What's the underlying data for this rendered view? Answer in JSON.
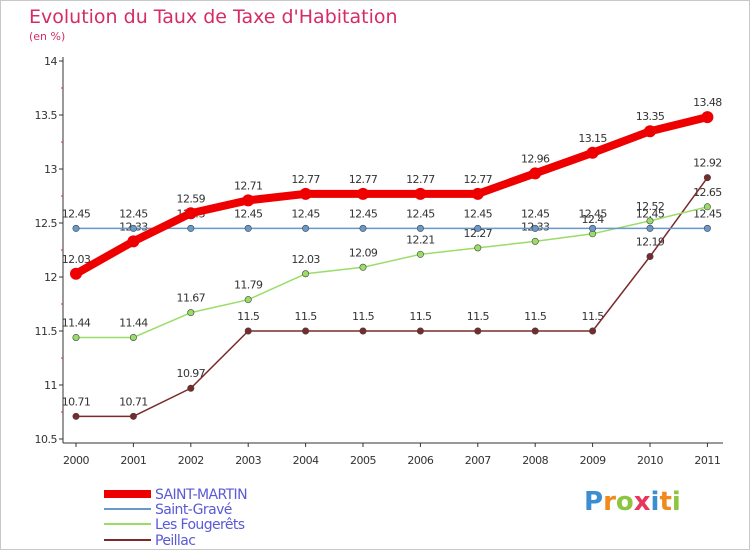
{
  "chart_data": {
    "type": "line",
    "title": "Evolution du Taux de Taxe d'Habitation",
    "unit_label": "(en %)",
    "x": [
      "2000",
      "2001",
      "2002",
      "2003",
      "2004",
      "2005",
      "2006",
      "2007",
      "2008",
      "2009",
      "2010",
      "2011"
    ],
    "ylim": [
      10.5,
      14
    ],
    "yticks": [
      "10.5",
      "11",
      "11.5",
      "12",
      "12.5",
      "13",
      "13.5",
      "14"
    ],
    "grid": false,
    "legend_position": "bottom-left",
    "series": [
      {
        "name": "SAINT-MARTIN",
        "color": "#ee0000",
        "values": [
          12.03,
          12.33,
          12.59,
          12.71,
          12.77,
          12.77,
          12.77,
          12.77,
          12.96,
          13.15,
          13.35,
          13.48
        ],
        "labels": [
          "12.03",
          "12.33",
          "12.59",
          "12.71",
          "12.77",
          "12.77",
          "12.77",
          "12.77",
          "12.96",
          "13.15",
          "13.35",
          "13.48"
        ]
      },
      {
        "name": "Saint-Gravé",
        "color": "#6699cc",
        "values": [
          12.45,
          12.45,
          12.45,
          12.45,
          12.45,
          12.45,
          12.45,
          12.45,
          12.45,
          12.45,
          12.45,
          12.45
        ],
        "labels": [
          "12.45",
          "12.45",
          "12.45",
          "12.45",
          "12.45",
          "12.45",
          "12.45",
          "12.45",
          "12.45",
          "12.45",
          "12.45",
          "12.45"
        ]
      },
      {
        "name": "Les Fougerêts",
        "color": "#99dd66",
        "values": [
          11.44,
          11.44,
          11.67,
          11.79,
          12.03,
          12.09,
          12.21,
          12.27,
          12.33,
          12.4,
          12.52,
          12.65
        ],
        "labels": [
          "11.44",
          "11.44",
          "11.67",
          "11.79",
          "12.03",
          "12.09",
          "12.21",
          "12.27",
          "12.33",
          "12.4",
          "12.52",
          "12.65"
        ]
      },
      {
        "name": "Peillac",
        "color": "#7a2a2a",
        "values": [
          10.71,
          10.71,
          10.97,
          11.5,
          11.5,
          11.5,
          11.5,
          11.5,
          11.5,
          11.5,
          12.19,
          12.92
        ],
        "labels": [
          "10.71",
          "10.71",
          "10.97",
          "11.5",
          "11.5",
          "11.5",
          "11.5",
          "11.5",
          "11.5",
          "11.5",
          "12.19",
          "12.92"
        ]
      }
    ]
  },
  "logo": {
    "letters": [
      "P",
      "r",
      "o",
      "x",
      "i",
      "t",
      "i"
    ],
    "colors": [
      "#3b8fd1",
      "#f08a1c",
      "#8cc63f",
      "#e8365d",
      "#3b8fd1",
      "#f08a1c",
      "#8cc63f"
    ]
  }
}
